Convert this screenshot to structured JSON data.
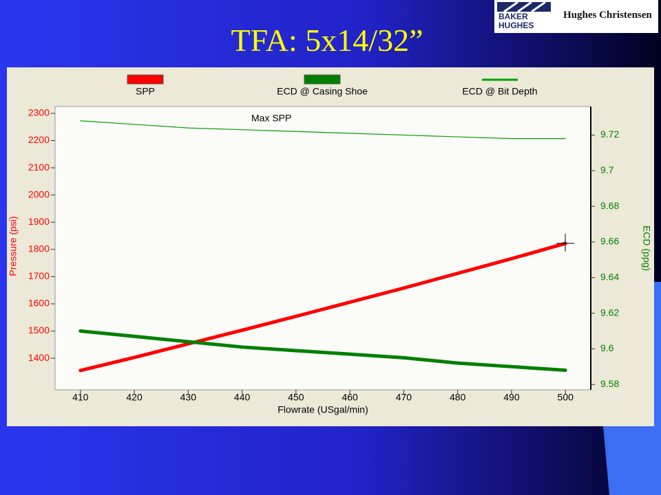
{
  "slide": {
    "title": "TFA: 5x14/32”",
    "logo_brand": [
      "BAKER",
      "HUGHES"
    ],
    "logo_division": "Hughes Christensen"
  },
  "chart_data": {
    "type": "line",
    "annotation": "Max SPP",
    "xlabel": "Flowrate (USgal/min)",
    "ylabel": "Pressure (psi)",
    "y2label": "ECD (ppg)",
    "x": [
      410,
      420,
      430,
      440,
      450,
      460,
      470,
      480,
      490,
      500
    ],
    "series": [
      {
        "name": "SPP",
        "color": "#ff0000",
        "line_width": 5,
        "values": [
          1355,
          1403,
          1453,
          1503,
          1554,
          1606,
          1658,
          1712,
          1766,
          1822
        ]
      },
      {
        "name": "ECD @ Casing Shoe",
        "color": "#008000",
        "line_width": 5,
        "axis": "y2",
        "values": [
          9.61,
          9.607,
          9.604,
          9.601,
          9.599,
          9.597,
          9.595,
          9.592,
          9.59,
          9.588
        ]
      },
      {
        "name": "ECD @ Bit Depth",
        "color": "#00a000",
        "line_width": 1.2,
        "axis": "y2",
        "values": [
          9.728,
          9.726,
          9.724,
          9.723,
          9.722,
          9.721,
          9.72,
          9.719,
          9.718,
          9.718
        ]
      }
    ],
    "xlim": [
      405.3,
      504.7
    ],
    "xticks": [
      410,
      420,
      430,
      440,
      450,
      460,
      470,
      480,
      490,
      500
    ],
    "ylim": [
      1284,
      2325
    ],
    "yticks": [
      1400,
      1500,
      1600,
      1700,
      1800,
      1900,
      2000,
      2100,
      2200,
      2300
    ],
    "y2lim": [
      9.577,
      9.736
    ],
    "y2ticks": [
      9.58,
      9.6,
      9.62,
      9.64,
      9.66,
      9.68,
      9.7,
      9.72
    ],
    "grid": false
  }
}
